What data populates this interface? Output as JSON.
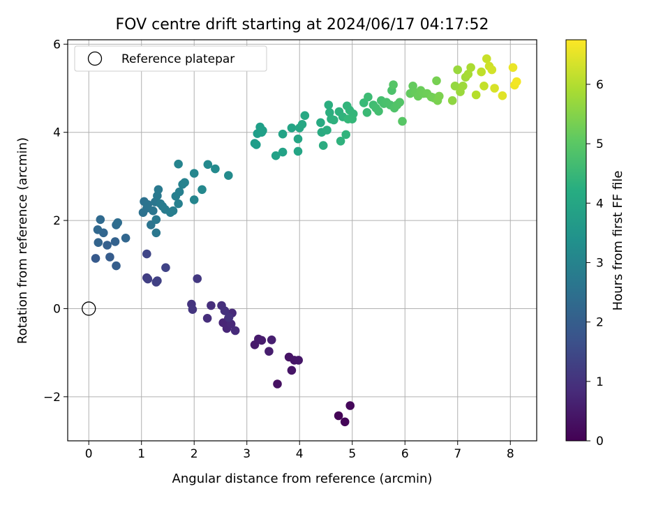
{
  "chart_data": {
    "type": "scatter",
    "title": "FOV centre drift starting at 2024/06/17 04:17:52",
    "xlabel": "Angular distance from reference (arcmin)",
    "ylabel": "Rotation from reference (arcmin)",
    "xlim": [
      -0.4,
      8.5
    ],
    "ylim": [
      -3.0,
      6.1
    ],
    "x_ticks": [
      0,
      1,
      2,
      3,
      4,
      5,
      6,
      7,
      8
    ],
    "y_ticks": [
      -2,
      0,
      2,
      4,
      6
    ],
    "grid": true,
    "legend": {
      "position": "top-left",
      "entries": [
        "Reference platepar"
      ]
    },
    "reference_point": {
      "x": 0,
      "y": 0
    },
    "colorbar": {
      "label": "Hours from first FF file",
      "colormap": "viridis",
      "range": [
        0,
        6.75
      ],
      "ticks": [
        0,
        1,
        2,
        3,
        4,
        5,
        6
      ]
    },
    "points": [
      [
        4.74,
        -2.43,
        0.05
      ],
      [
        4.86,
        -2.57,
        0.08
      ],
      [
        4.96,
        -2.2,
        0.12
      ],
      [
        3.58,
        -1.71,
        0.3
      ],
      [
        3.8,
        -1.1,
        0.35
      ],
      [
        3.85,
        -1.4,
        0.38
      ],
      [
        3.9,
        -1.17,
        0.4
      ],
      [
        3.98,
        -1.17,
        0.42
      ],
      [
        3.15,
        -0.82,
        0.48
      ],
      [
        3.22,
        -0.69,
        0.5
      ],
      [
        3.28,
        -0.72,
        0.52
      ],
      [
        3.42,
        -0.97,
        0.55
      ],
      [
        3.47,
        -0.71,
        0.58
      ],
      [
        2.55,
        -0.32,
        0.7
      ],
      [
        2.62,
        -0.45,
        0.72
      ],
      [
        2.65,
        -0.22,
        0.75
      ],
      [
        2.7,
        -0.35,
        0.78
      ],
      [
        2.72,
        -0.1,
        0.8
      ],
      [
        2.78,
        -0.5,
        0.82
      ],
      [
        2.25,
        -0.22,
        0.88
      ],
      [
        2.32,
        0.07,
        0.9
      ],
      [
        2.52,
        0.07,
        0.92
      ],
      [
        2.58,
        -0.05,
        0.95
      ],
      [
        2.66,
        -0.2,
        0.97
      ],
      [
        1.95,
        0.1,
        1.02
      ],
      [
        1.97,
        -0.02,
        1.05
      ],
      [
        2.06,
        0.68,
        1.1
      ],
      [
        1.1,
        0.7,
        1.2
      ],
      [
        1.12,
        0.67,
        1.25
      ],
      [
        1.28,
        0.6,
        1.28
      ],
      [
        1.3,
        0.63,
        1.3
      ],
      [
        1.46,
        0.93,
        1.35
      ],
      [
        1.1,
        1.24,
        1.4
      ],
      [
        0.13,
        1.14,
        1.9
      ],
      [
        0.4,
        1.17,
        1.95
      ],
      [
        0.52,
        0.97,
        2.0
      ],
      [
        0.35,
        1.44,
        2.05
      ],
      [
        0.5,
        1.52,
        2.1
      ],
      [
        0.18,
        1.5,
        2.15
      ],
      [
        0.28,
        1.72,
        2.2
      ],
      [
        0.7,
        1.6,
        2.22
      ],
      [
        0.17,
        1.79,
        2.25
      ],
      [
        0.22,
        2.02,
        2.3
      ],
      [
        0.52,
        1.9,
        2.35
      ],
      [
        0.55,
        1.95,
        2.4
      ],
      [
        1.03,
        2.18,
        2.5
      ],
      [
        1.05,
        2.43,
        2.52
      ],
      [
        1.1,
        2.28,
        2.55
      ],
      [
        1.12,
        2.36,
        2.58
      ],
      [
        1.18,
        1.9,
        2.6
      ],
      [
        1.22,
        2.22,
        2.62
      ],
      [
        1.26,
        2.42,
        2.65
      ],
      [
        1.28,
        1.72,
        2.68
      ],
      [
        1.28,
        2.02,
        2.7
      ],
      [
        1.3,
        2.56,
        2.72
      ],
      [
        1.32,
        2.7,
        2.75
      ],
      [
        1.36,
        2.38,
        2.78
      ],
      [
        1.4,
        2.32,
        2.8
      ],
      [
        1.45,
        2.25,
        2.82
      ],
      [
        1.55,
        2.18,
        2.85
      ],
      [
        1.6,
        2.22,
        2.88
      ],
      [
        1.65,
        2.55,
        2.9
      ],
      [
        1.72,
        2.65,
        2.92
      ],
      [
        1.7,
        2.38,
        2.95
      ],
      [
        1.78,
        2.82,
        2.98
      ],
      [
        1.82,
        2.86,
        3.0
      ],
      [
        1.7,
        3.28,
        3.05
      ],
      [
        2.0,
        2.47,
        3.08
      ],
      [
        2.0,
        3.07,
        3.1
      ],
      [
        2.15,
        2.7,
        3.15
      ],
      [
        2.26,
        3.27,
        3.2
      ],
      [
        2.4,
        3.17,
        3.22
      ],
      [
        2.65,
        3.02,
        3.25
      ],
      [
        3.15,
        3.75,
        3.7
      ],
      [
        3.18,
        3.72,
        3.72
      ],
      [
        3.2,
        3.97,
        3.75
      ],
      [
        3.25,
        4.12,
        3.78
      ],
      [
        3.28,
        4.0,
        3.8
      ],
      [
        3.3,
        4.04,
        3.82
      ],
      [
        3.55,
        3.47,
        3.85
      ],
      [
        3.68,
        3.55,
        3.88
      ],
      [
        3.68,
        3.96,
        3.9
      ],
      [
        3.85,
        4.1,
        3.92
      ],
      [
        3.97,
        3.57,
        3.95
      ],
      [
        3.97,
        3.85,
        3.97
      ],
      [
        4.0,
        4.1,
        4.0
      ],
      [
        4.05,
        4.18,
        4.02
      ],
      [
        4.1,
        4.38,
        4.05
      ],
      [
        4.4,
        4.22,
        4.1
      ],
      [
        4.42,
        4.0,
        4.12
      ],
      [
        4.45,
        3.7,
        4.15
      ],
      [
        4.52,
        4.05,
        4.18
      ],
      [
        4.55,
        4.62,
        4.2
      ],
      [
        4.57,
        4.45,
        4.22
      ],
      [
        4.6,
        4.3,
        4.25
      ],
      [
        4.65,
        4.28,
        4.28
      ],
      [
        4.75,
        4.47,
        4.3
      ],
      [
        4.78,
        3.8,
        4.32
      ],
      [
        4.82,
        4.35,
        4.35
      ],
      [
        4.88,
        3.95,
        4.38
      ],
      [
        4.9,
        4.6,
        4.4
      ],
      [
        4.95,
        4.5,
        4.42
      ],
      [
        5.02,
        4.42,
        4.45
      ],
      [
        5.0,
        4.3,
        4.48
      ],
      [
        4.92,
        4.3,
        4.5
      ],
      [
        5.22,
        4.67,
        4.55
      ],
      [
        5.28,
        4.45,
        4.58
      ],
      [
        5.3,
        4.8,
        4.62
      ],
      [
        5.4,
        4.62,
        4.65
      ],
      [
        5.45,
        4.55,
        4.68
      ],
      [
        5.5,
        4.48,
        4.7
      ],
      [
        5.55,
        4.72,
        4.72
      ],
      [
        5.6,
        4.65,
        4.75
      ],
      [
        5.65,
        4.68,
        4.78
      ],
      [
        5.72,
        4.62,
        4.8
      ],
      [
        5.75,
        4.95,
        4.82
      ],
      [
        5.8,
        4.55,
        4.85
      ],
      [
        5.85,
        4.62,
        4.88
      ],
      [
        5.9,
        4.68,
        4.9
      ],
      [
        5.78,
        5.08,
        4.92
      ],
      [
        5.95,
        4.25,
        4.95
      ],
      [
        6.1,
        4.88,
        5.1
      ],
      [
        6.15,
        5.05,
        5.12
      ],
      [
        6.2,
        4.9,
        5.15
      ],
      [
        6.25,
        4.82,
        5.18
      ],
      [
        6.3,
        4.95,
        5.2
      ],
      [
        6.35,
        4.88,
        5.22
      ],
      [
        6.42,
        4.88,
        5.25
      ],
      [
        6.5,
        4.8,
        5.28
      ],
      [
        6.55,
        4.78,
        5.3
      ],
      [
        6.6,
        5.17,
        5.35
      ],
      [
        6.62,
        4.72,
        5.38
      ],
      [
        6.65,
        4.82,
        5.4
      ],
      [
        6.9,
        4.72,
        5.6
      ],
      [
        6.95,
        5.05,
        5.65
      ],
      [
        7.0,
        5.42,
        5.7
      ],
      [
        7.05,
        4.92,
        5.72
      ],
      [
        7.1,
        5.05,
        5.75
      ],
      [
        7.15,
        5.25,
        5.8
      ],
      [
        7.2,
        5.32,
        5.85
      ],
      [
        7.25,
        5.47,
        5.88
      ],
      [
        7.35,
        4.85,
        6.0
      ],
      [
        7.45,
        5.37,
        6.1
      ],
      [
        7.5,
        5.05,
        6.15
      ],
      [
        7.55,
        5.67,
        6.2
      ],
      [
        7.6,
        5.5,
        6.25
      ],
      [
        7.65,
        5.42,
        6.3
      ],
      [
        7.7,
        5.0,
        6.35
      ],
      [
        7.85,
        4.83,
        6.45
      ],
      [
        8.05,
        5.47,
        6.55
      ],
      [
        8.08,
        5.07,
        6.6
      ],
      [
        8.12,
        5.15,
        6.65
      ]
    ]
  }
}
